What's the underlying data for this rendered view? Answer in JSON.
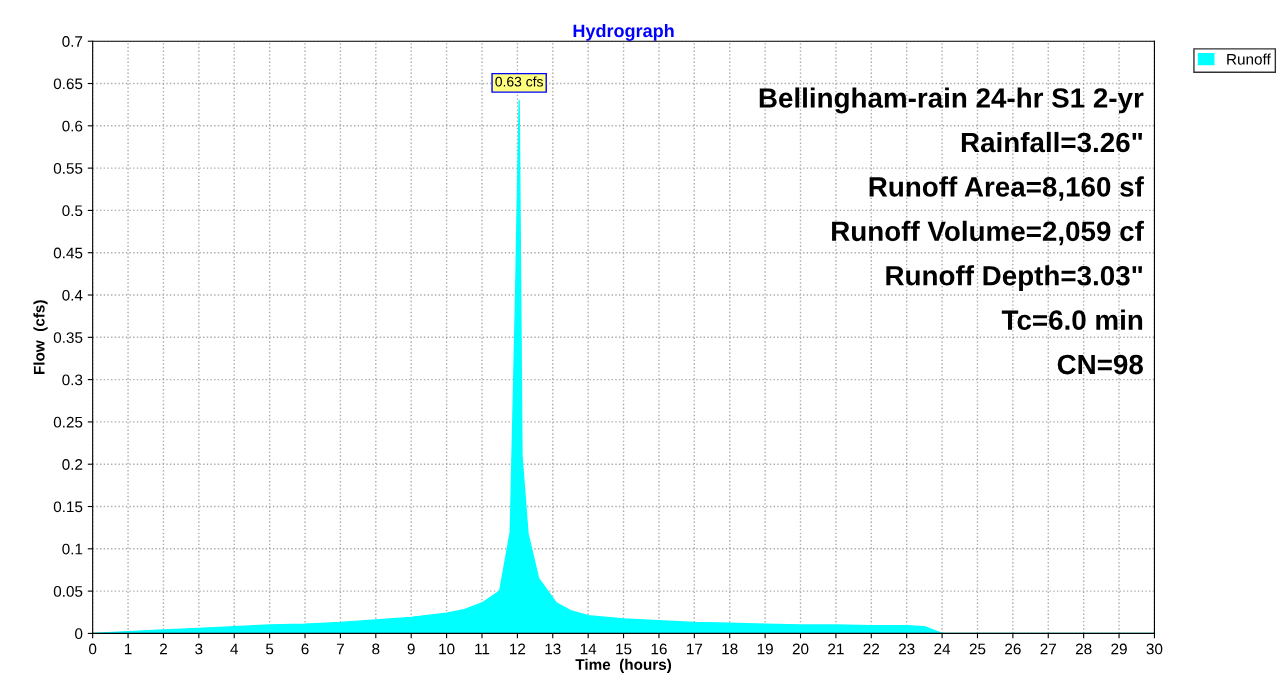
{
  "chart_data": {
    "type": "area",
    "title": "Hydrograph",
    "xlabel": "Time  (hours)",
    "ylabel": "Flow  (cfs)",
    "x": [
      0,
      1,
      2,
      3,
      4,
      5,
      6,
      7,
      8,
      9,
      10,
      10.5,
      11,
      11.5,
      11.8,
      11.95,
      12.05,
      12.13,
      12.3,
      12.6,
      13.1,
      13.5,
      14,
      15,
      16,
      17,
      18,
      19,
      20,
      21,
      22,
      23,
      23.5,
      24,
      25,
      26,
      27,
      28,
      29,
      30
    ],
    "series": [
      {
        "name": "Runoff",
        "color": "#00ffff",
        "values": [
          0,
          0.002,
          0.004,
          0.006,
          0.008,
          0.01,
          0.011,
          0.013,
          0.016,
          0.019,
          0.024,
          0.028,
          0.036,
          0.05,
          0.12,
          0.4,
          0.63,
          0.21,
          0.118,
          0.065,
          0.036,
          0.027,
          0.021,
          0.017,
          0.015,
          0.013,
          0.012,
          0.011,
          0.01,
          0.01,
          0.009,
          0.009,
          0.008,
          0,
          0,
          0,
          0,
          0,
          0,
          0
        ]
      }
    ],
    "xlim": [
      0,
      30
    ],
    "xticks": [
      0,
      1,
      2,
      3,
      4,
      5,
      6,
      7,
      8,
      9,
      10,
      11,
      12,
      13,
      14,
      15,
      16,
      17,
      18,
      19,
      20,
      21,
      22,
      23,
      24,
      25,
      26,
      27,
      28,
      29,
      30
    ],
    "ylim": [
      0,
      0.7
    ],
    "yticks": [
      0,
      0.05,
      0.1,
      0.15,
      0.2,
      0.25,
      0.3,
      0.35,
      0.4,
      0.45,
      0.5,
      0.55,
      0.6,
      0.65,
      0.7
    ],
    "grid": true,
    "legend": "top right",
    "annotations": [
      {
        "text": "0.63 cfs",
        "x": 12.05,
        "y": 0.63
      },
      "Bellingham-rain 24-hr S1 2-yr",
      "Rainfall=3.26\"",
      "Runoff Area=8,160 sf",
      "Runoff Volume=2,059 cf",
      "Runoff Depth=3.03\"",
      "Tc=6.0 min",
      "CN=98"
    ]
  }
}
